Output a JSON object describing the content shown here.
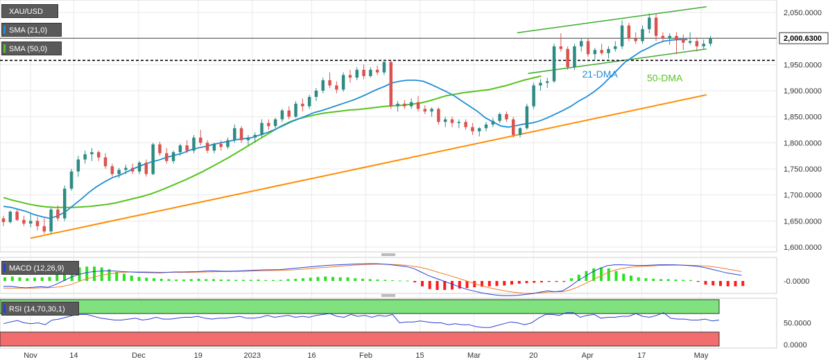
{
  "colors": {
    "up": "#2e8b84",
    "down": "#d9534f",
    "sma21": "#1f8dd6",
    "sma50": "#55c31c",
    "support": "#ff8c00",
    "channel": "#3aab2b",
    "macd_line": "#2a3fd6",
    "signal_line": "#f07b2a",
    "hist_pos": "#29e021",
    "hist_neg": "#ff1a1a",
    "rsi_line": "#2a3fd6",
    "overbought": "#7fe27f",
    "oversold": "#f26d6d",
    "grid": "#e9e9e9"
  },
  "legend": {
    "symbol": "XAU/USD",
    "sma21": "SMA (21,0)",
    "sma50": "SMA (50,0)",
    "macd": "MACD (12,26,9)",
    "rsi": "RSI (14,70,30,1)"
  },
  "chart_data": [
    {
      "type": "candlestick",
      "title": "XAU/USD",
      "y_ticks": [
        "2,050.0000",
        "2,000.0000",
        "1,950.0000",
        "1,900.0000",
        "1,850.0000",
        "1,800.0000",
        "1,750.0000",
        "1,700.0000",
        "1,650.0000",
        "1,600.0000"
      ],
      "ylim": [
        1595,
        2066
      ],
      "x_tick_labels": [
        "Nov",
        "14",
        "Dec",
        "19",
        "2023",
        "16",
        "Feb",
        "15",
        "Mar",
        "20",
        "Apr",
        "17",
        "May"
      ],
      "x_tick_index": [
        5,
        13,
        25,
        36,
        46,
        57,
        67,
        77,
        87,
        98,
        108,
        118,
        129
      ],
      "x_range": [
        0,
        134
      ],
      "last_price_label": "2,000.6300",
      "last_price": 2000.63,
      "resistance_level": 1958,
      "candles": [
        [
          1655,
          1660,
          1640,
          1648
        ],
        [
          1648,
          1670,
          1645,
          1668
        ],
        [
          1668,
          1672,
          1650,
          1652
        ],
        [
          1652,
          1660,
          1640,
          1645
        ],
        [
          1645,
          1665,
          1638,
          1650
        ],
        [
          1650,
          1658,
          1632,
          1640
        ],
        [
          1640,
          1655,
          1625,
          1630
        ],
        [
          1630,
          1675,
          1625,
          1672
        ],
        [
          1672,
          1680,
          1650,
          1655
        ],
        [
          1655,
          1718,
          1650,
          1712
        ],
        [
          1712,
          1750,
          1708,
          1745
        ],
        [
          1745,
          1775,
          1735,
          1768
        ],
        [
          1768,
          1785,
          1760,
          1778
        ],
        [
          1778,
          1790,
          1765,
          1782
        ],
        [
          1782,
          1785,
          1765,
          1772
        ],
        [
          1772,
          1780,
          1750,
          1755
        ],
        [
          1755,
          1760,
          1735,
          1740
        ],
        [
          1740,
          1752,
          1732,
          1748
        ],
        [
          1748,
          1758,
          1740,
          1752
        ],
        [
          1752,
          1760,
          1740,
          1745
        ],
        [
          1745,
          1765,
          1740,
          1762
        ],
        [
          1762,
          1768,
          1735,
          1740
        ],
        [
          1740,
          1800,
          1738,
          1797
        ],
        [
          1797,
          1802,
          1775,
          1780
        ],
        [
          1780,
          1790,
          1760,
          1765
        ],
        [
          1765,
          1785,
          1760,
          1782
        ],
        [
          1782,
          1798,
          1775,
          1795
        ],
        [
          1795,
          1805,
          1780,
          1785
        ],
        [
          1785,
          1815,
          1780,
          1810
        ],
        [
          1810,
          1825,
          1795,
          1800
        ],
        [
          1800,
          1805,
          1780,
          1785
        ],
        [
          1785,
          1800,
          1780,
          1798
        ],
        [
          1798,
          1805,
          1785,
          1792
        ],
        [
          1792,
          1810,
          1788,
          1805
        ],
        [
          1805,
          1835,
          1800,
          1828
        ],
        [
          1828,
          1832,
          1800,
          1805
        ],
        [
          1805,
          1815,
          1795,
          1810
        ],
        [
          1810,
          1820,
          1800,
          1815
        ],
        [
          1815,
          1845,
          1810,
          1838
        ],
        [
          1838,
          1845,
          1825,
          1832
        ],
        [
          1832,
          1848,
          1828,
          1845
        ],
        [
          1845,
          1865,
          1840,
          1862
        ],
        [
          1862,
          1870,
          1845,
          1850
        ],
        [
          1850,
          1880,
          1848,
          1875
        ],
        [
          1875,
          1885,
          1860,
          1870
        ],
        [
          1870,
          1892,
          1865,
          1888
        ],
        [
          1888,
          1905,
          1880,
          1900
        ],
        [
          1900,
          1925,
          1895,
          1920
        ],
        [
          1920,
          1935,
          1905,
          1910
        ],
        [
          1910,
          1918,
          1895,
          1902
        ],
        [
          1902,
          1935,
          1898,
          1930
        ],
        [
          1930,
          1940,
          1915,
          1925
        ],
        [
          1925,
          1945,
          1920,
          1940
        ],
        [
          1940,
          1950,
          1922,
          1928
        ],
        [
          1928,
          1945,
          1925,
          1940
        ],
        [
          1940,
          1948,
          1930,
          1935
        ],
        [
          1935,
          1960,
          1930,
          1955
        ],
        [
          1955,
          1958,
          1865,
          1870
        ],
        [
          1870,
          1880,
          1860,
          1875
        ],
        [
          1875,
          1882,
          1865,
          1870
        ],
        [
          1870,
          1885,
          1865,
          1878
        ],
        [
          1878,
          1890,
          1860,
          1865
        ],
        [
          1865,
          1872,
          1855,
          1860
        ],
        [
          1860,
          1868,
          1850,
          1865
        ],
        [
          1865,
          1868,
          1835,
          1840
        ],
        [
          1840,
          1850,
          1830,
          1845
        ],
        [
          1845,
          1850,
          1830,
          1838
        ],
        [
          1838,
          1845,
          1828,
          1840
        ],
        [
          1840,
          1845,
          1825,
          1830
        ],
        [
          1830,
          1838,
          1815,
          1822
        ],
        [
          1822,
          1830,
          1812,
          1828
        ],
        [
          1828,
          1840,
          1822,
          1835
        ],
        [
          1835,
          1848,
          1830,
          1842
        ],
        [
          1842,
          1858,
          1838,
          1855
        ],
        [
          1855,
          1860,
          1840,
          1845
        ],
        [
          1845,
          1850,
          1810,
          1815
        ],
        [
          1815,
          1830,
          1810,
          1828
        ],
        [
          1828,
          1875,
          1825,
          1870
        ],
        [
          1870,
          1915,
          1865,
          1910
        ],
        [
          1910,
          1922,
          1900,
          1915
        ],
        [
          1915,
          1925,
          1905,
          1918
        ],
        [
          1918,
          1990,
          1915,
          1985
        ],
        [
          1985,
          2010,
          1975,
          1980
        ],
        [
          1980,
          1985,
          1940,
          1945
        ],
        [
          1945,
          1990,
          1940,
          1985
        ],
        [
          1985,
          2000,
          1975,
          1995
        ],
        [
          1995,
          2000,
          1965,
          1970
        ],
        [
          1970,
          1982,
          1960,
          1978
        ],
        [
          1978,
          1990,
          1968,
          1972
        ],
        [
          1972,
          1985,
          1962,
          1980
        ],
        [
          1980,
          1995,
          1975,
          1985
        ],
        [
          1985,
          2035,
          1980,
          2025
        ],
        [
          2025,
          2030,
          1995,
          2000
        ],
        [
          2000,
          2012,
          1990,
          1995
        ],
        [
          1995,
          2025,
          1990,
          2018
        ],
        [
          2018,
          2048,
          2010,
          2040
        ],
        [
          2040,
          2048,
          1995,
          2005
        ],
        [
          2005,
          2012,
          1995,
          2000
        ],
        [
          2000,
          2010,
          1988,
          2005
        ],
        [
          2005,
          2012,
          1970,
          1998
        ],
        [
          1998,
          2008,
          1978,
          1992
        ],
        [
          1992,
          2012,
          1988,
          1995
        ],
        [
          1995,
          2002,
          1975,
          1985
        ],
        [
          1985,
          1998,
          1980,
          1990
        ],
        [
          1990,
          2005,
          1985,
          2000
        ]
      ],
      "sma21": [
        1678,
        1676,
        1672,
        1668,
        1662,
        1658,
        1655,
        1660,
        1668,
        1680,
        1692,
        1705,
        1716,
        1725,
        1733,
        1738,
        1745,
        1752,
        1758,
        1763,
        1767,
        1772,
        1776,
        1780,
        1786,
        1790,
        1793,
        1797,
        1800,
        1803,
        1806,
        1808,
        1810,
        1815,
        1820,
        1826,
        1833,
        1840,
        1846,
        1852,
        1858,
        1862,
        1867,
        1872,
        1877,
        1882,
        1888,
        1895,
        1902,
        1908,
        1915,
        1918,
        1920,
        1920,
        1918,
        1912,
        1905,
        1898,
        1890,
        1880,
        1870,
        1860,
        1848,
        1840,
        1832,
        1830,
        1833,
        1836,
        1838,
        1842,
        1848,
        1855,
        1862,
        1870,
        1880,
        1888,
        1898,
        1910,
        1925,
        1940,
        1955,
        1965,
        1975,
        1982,
        1990,
        1995,
        1997,
        1998,
        1998
      ],
      "sma21_start": 0,
      "sma50": [
        1695,
        1690,
        1686,
        1682,
        1679,
        1677,
        1676,
        1676,
        1676,
        1677,
        1678,
        1680,
        1682,
        1685,
        1689,
        1693,
        1697,
        1702,
        1708,
        1715,
        1722,
        1729,
        1737,
        1745,
        1754,
        1763,
        1772,
        1782,
        1792,
        1802,
        1812,
        1822,
        1832,
        1840,
        1846,
        1850,
        1854,
        1857,
        1859,
        1861,
        1863,
        1864,
        1866,
        1868,
        1870,
        1871,
        1872,
        1874,
        1876,
        1880,
        1885,
        1890,
        1893,
        1896,
        1898,
        1900,
        1902,
        1906,
        1910,
        1915,
        1920,
        1924,
        1928
      ],
      "sma50_start": 0,
      "sma50_x_step": 1.7,
      "support_line": {
        "from": [
          5,
          1617
        ],
        "to": [
          130,
          1892
        ]
      },
      "channel_upper": {
        "from": [
          95,
          2011
        ],
        "to": [
          130,
          2061
        ]
      },
      "channel_lower": {
        "from": [
          97,
          1933
        ],
        "to": [
          130,
          1980
        ]
      },
      "annotations": [
        {
          "text": "21-DMA",
          "x": 107,
          "y": 1925,
          "color": "#1f8dd6"
        },
        {
          "text": "50-DMA",
          "x": 119,
          "y": 1918,
          "color": "#55c31c"
        }
      ]
    },
    {
      "type": "macd",
      "title": "MACD (12,26,9)",
      "y_ticks": [
        "-0.0000"
      ],
      "ylim": [
        -1,
        1
      ],
      "histogram": [
        0.2,
        0.25,
        0.2,
        0.15,
        0.18,
        0.2,
        0.22,
        0.35,
        0.5,
        0.65,
        0.75,
        0.8,
        0.8,
        0.75,
        0.65,
        0.5,
        0.4,
        0.3,
        0.22,
        0.18,
        0.15,
        0.12,
        0.1,
        0.08,
        0.08,
        0.1,
        0.12,
        0.1,
        0.1,
        0.08,
        0.08,
        0.06,
        0.06,
        0.06,
        0.08,
        0.05,
        0.05,
        0.06,
        0.1,
        0.12,
        0.15,
        0.18,
        0.22,
        0.25,
        0.22,
        0.2,
        0.2,
        0.15,
        0.12,
        0.1,
        0.08,
        0.06,
        0.04,
        0.02,
        0.02,
        -0.08,
        -0.3,
        -0.45,
        -0.5,
        -0.5,
        -0.48,
        -0.42,
        -0.4,
        -0.35,
        -0.32,
        -0.3,
        -0.28,
        -0.25,
        -0.2,
        -0.15,
        -0.12,
        -0.1,
        -0.08,
        -0.05,
        -0.05,
        -0.05,
        0.15,
        0.35,
        0.55,
        0.7,
        0.75,
        0.7,
        0.55,
        0.4,
        0.3,
        0.2,
        0.15,
        0.12,
        0.1,
        0.1,
        0.08,
        0.06,
        0.05,
        -0.05,
        -0.2,
        -0.25,
        -0.28,
        -0.3,
        -0.3,
        -0.28
      ],
      "macd_line": [
        -0.3,
        -0.3,
        -0.35,
        -0.38,
        -0.35,
        -0.32,
        -0.35,
        -0.2,
        0,
        0.2,
        0.35,
        0.45,
        0.52,
        0.55,
        0.56,
        0.55,
        0.52,
        0.5,
        0.48,
        0.47,
        0.46,
        0.45,
        0.48,
        0.5,
        0.5,
        0.51,
        0.52,
        0.55,
        0.56,
        0.55,
        0.54,
        0.55,
        0.56,
        0.58,
        0.6,
        0.62,
        0.62,
        0.63,
        0.66,
        0.7,
        0.74,
        0.78,
        0.82,
        0.85,
        0.88,
        0.9,
        0.92,
        0.94,
        0.95,
        0.96,
        0.96,
        0.94,
        0.9,
        0.85,
        0.8,
        0.7,
        0.5,
        0.3,
        0.15,
        0,
        -0.15,
        -0.3,
        -0.45,
        -0.55,
        -0.65,
        -0.72,
        -0.78,
        -0.82,
        -0.82,
        -0.8,
        -0.75,
        -0.7,
        -0.62,
        -0.55,
        -0.6,
        -0.55,
        -0.3,
        0,
        0.25,
        0.5,
        0.7,
        0.85,
        0.9,
        0.9,
        0.88,
        0.86,
        0.86,
        0.88,
        0.9,
        0.9,
        0.9,
        0.88,
        0.85,
        0.82,
        0.75,
        0.65,
        0.55,
        0.45,
        0.38,
        0.32
      ],
      "signal_line": [
        -0.4,
        -0.4,
        -0.4,
        -0.4,
        -0.4,
        -0.38,
        -0.38,
        -0.35,
        -0.3,
        -0.2,
        -0.05,
        0.1,
        0.2,
        0.3,
        0.38,
        0.44,
        0.48,
        0.5,
        0.5,
        0.5,
        0.49,
        0.48,
        0.48,
        0.48,
        0.48,
        0.48,
        0.49,
        0.5,
        0.51,
        0.52,
        0.52,
        0.53,
        0.54,
        0.55,
        0.56,
        0.57,
        0.58,
        0.59,
        0.6,
        0.62,
        0.65,
        0.68,
        0.72,
        0.75,
        0.78,
        0.82,
        0.85,
        0.88,
        0.9,
        0.92,
        0.93,
        0.93,
        0.92,
        0.9,
        0.87,
        0.82,
        0.75,
        0.65,
        0.52,
        0.4,
        0.28,
        0.15,
        0.02,
        -0.12,
        -0.25,
        -0.36,
        -0.45,
        -0.53,
        -0.6,
        -0.65,
        -0.68,
        -0.68,
        -0.66,
        -0.62,
        -0.6,
        -0.6,
        -0.5,
        -0.35,
        -0.15,
        0.05,
        0.25,
        0.45,
        0.6,
        0.7,
        0.76,
        0.8,
        0.82,
        0.84,
        0.86,
        0.87,
        0.88,
        0.88,
        0.87,
        0.86,
        0.84,
        0.8,
        0.74,
        0.67,
        0.6,
        0.52
      ]
    },
    {
      "type": "rsi",
      "title": "RSI (14,70,30,1)",
      "y_ticks": [
        "50.0000",
        "0.0000"
      ],
      "ylim": [
        0,
        100
      ],
      "overbought": 70,
      "oversold": 30,
      "values": [
        48,
        52,
        55,
        50,
        48,
        50,
        46,
        56,
        58,
        62,
        66,
        68,
        68,
        64,
        60,
        58,
        56,
        56,
        58,
        60,
        56,
        58,
        62,
        58,
        58,
        60,
        62,
        62,
        64,
        60,
        58,
        60,
        60,
        62,
        64,
        60,
        60,
        62,
        66,
        62,
        64,
        66,
        62,
        64,
        62,
        66,
        68,
        70,
        64,
        62,
        68,
        64,
        66,
        62,
        66,
        64,
        68,
        50,
        52,
        52,
        54,
        52,
        50,
        50,
        46,
        48,
        46,
        46,
        42,
        40,
        40,
        44,
        48,
        52,
        50,
        46,
        50,
        60,
        68,
        68,
        66,
        72,
        72,
        62,
        66,
        68,
        60,
        62,
        62,
        64,
        64,
        70,
        64,
        62,
        66,
        72,
        60,
        58,
        58,
        56,
        56,
        58,
        54,
        56
      ]
    }
  ]
}
